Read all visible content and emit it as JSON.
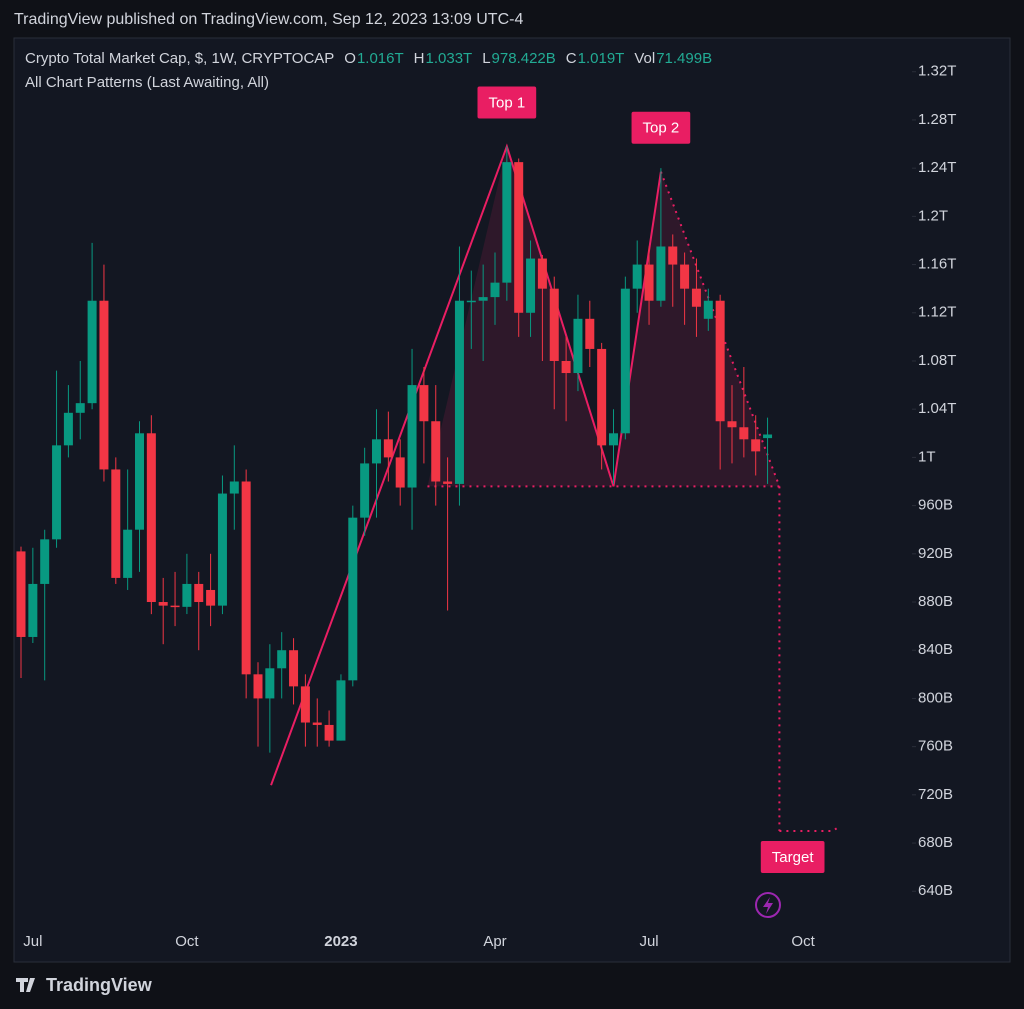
{
  "header": {
    "published": "TradingView published on TradingView.com, Sep 12, 2023 13:09 UTC-4"
  },
  "chart_data": {
    "type": "candlestick",
    "title": "Crypto Total Market Cap, $, 1W, CRYPTOCAP",
    "legend": [
      {
        "key": "O",
        "value": "1.016T"
      },
      {
        "key": "H",
        "value": "1.033T"
      },
      {
        "key": "L",
        "value": "978.422B"
      },
      {
        "key": "C",
        "value": "1.019T"
      },
      {
        "key": "Vol",
        "value": "71.499B"
      }
    ],
    "subtitle": "All Chart Patterns (Last Awaiting, All)",
    "categories": [
      null,
      "Jul",
      null,
      null,
      null,
      null,
      null,
      null,
      null,
      null,
      null,
      null,
      null,
      null,
      "Oct",
      null,
      null,
      null,
      null,
      null,
      null,
      null,
      null,
      null,
      null,
      null,
      null,
      "2023",
      null,
      null,
      null,
      null,
      null,
      null,
      null,
      null,
      null,
      null,
      null,
      null,
      "Apr",
      null,
      null,
      null,
      null,
      null,
      null,
      null,
      null,
      null,
      null,
      null,
      null,
      "Jul",
      null,
      null,
      null,
      null,
      null,
      null,
      null,
      null,
      null,
      null,
      null,
      null,
      "Oct",
      null,
      null,
      null
    ],
    "open": [
      922,
      851,
      895,
      932,
      1010,
      1037,
      1045,
      1130,
      990,
      900,
      940,
      1020,
      880,
      877,
      876,
      895,
      890,
      877,
      970,
      980,
      820,
      800,
      825,
      840,
      810,
      780,
      778,
      765,
      815,
      950,
      995,
      1015,
      1000,
      975,
      1060,
      1030,
      980,
      978,
      1130,
      1130,
      1133,
      1145,
      1245,
      1120,
      1165,
      1140,
      1080,
      1070,
      1115,
      1090,
      1010,
      1020,
      1140,
      1160,
      1130,
      1175,
      1160,
      1140,
      1115,
      1130,
      1030,
      1025,
      1015,
      1016,
      null,
      null,
      null,
      null,
      null,
      null
    ],
    "high": [
      926,
      925,
      940,
      1072,
      1060,
      1080,
      1178,
      1160,
      1000,
      990,
      1030,
      1035,
      900,
      905,
      920,
      905,
      920,
      985,
      1010,
      990,
      830,
      845,
      855,
      850,
      820,
      800,
      790,
      820,
      960,
      1008,
      1040,
      1038,
      1015,
      1090,
      1075,
      1060,
      1000,
      1175,
      1155,
      1160,
      1170,
      1258,
      1248,
      1180,
      1168,
      1150,
      1100,
      1135,
      1130,
      1095,
      1040,
      1150,
      1180,
      1175,
      1240,
      1185,
      1170,
      1165,
      1140,
      1135,
      1060,
      1075,
      1035,
      1033,
      null,
      null,
      null,
      null,
      null,
      null
    ],
    "low": [
      817,
      846,
      815,
      925,
      1000,
      1015,
      1040,
      980,
      895,
      890,
      905,
      870,
      845,
      860,
      870,
      840,
      860,
      870,
      940,
      800,
      760,
      755,
      800,
      795,
      760,
      760,
      760,
      765,
      810,
      935,
      950,
      980,
      960,
      940,
      995,
      960,
      873,
      960,
      1090,
      1080,
      1110,
      1130,
      1100,
      1100,
      1080,
      1040,
      1030,
      1055,
      1075,
      990,
      978,
      1015,
      1120,
      1110,
      1125,
      1125,
      1110,
      1100,
      1105,
      990,
      995,
      1000,
      985,
      978,
      null,
      null,
      null,
      null,
      null,
      null
    ],
    "close": [
      851,
      895,
      932,
      1010,
      1037,
      1045,
      1130,
      990,
      900,
      940,
      1020,
      880,
      877,
      876,
      895,
      880,
      877,
      970,
      980,
      820,
      800,
      825,
      840,
      810,
      780,
      778,
      765,
      815,
      950,
      995,
      1015,
      1000,
      975,
      1060,
      1030,
      980,
      978,
      1130,
      1130,
      1133,
      1145,
      1245,
      1120,
      1165,
      1140,
      1080,
      1070,
      1115,
      1090,
      1010,
      1020,
      1140,
      1160,
      1130,
      1175,
      1160,
      1140,
      1125,
      1130,
      1030,
      1025,
      1015,
      1005,
      1019,
      null,
      null,
      null,
      null,
      null,
      null
    ],
    "up_color": "#089981",
    "down_color": "#f23645",
    "ylim": [
      612,
      1348
    ],
    "yticks": [
      {
        "value": 1320,
        "label": "1.32T"
      },
      {
        "value": 1280,
        "label": "1.28T"
      },
      {
        "value": 1240,
        "label": "1.24T"
      },
      {
        "value": 1200,
        "label": "1.2T"
      },
      {
        "value": 1160,
        "label": "1.16T"
      },
      {
        "value": 1120,
        "label": "1.12T"
      },
      {
        "value": 1080,
        "label": "1.08T"
      },
      {
        "value": 1040,
        "label": "1.04T"
      },
      {
        "value": 1000,
        "label": "1T"
      },
      {
        "value": 960,
        "label": "960B"
      },
      {
        "value": 920,
        "label": "920B"
      },
      {
        "value": 880,
        "label": "880B"
      },
      {
        "value": 840,
        "label": "840B"
      },
      {
        "value": 800,
        "label": "800B"
      },
      {
        "value": 760,
        "label": "760B"
      },
      {
        "value": 720,
        "label": "720B"
      },
      {
        "value": 680,
        "label": "680B"
      },
      {
        "value": 640,
        "label": "640B"
      }
    ],
    "pattern": {
      "points": [
        728,
        1258,
        976,
        1237
      ],
      "neckline": 976,
      "target": 690,
      "labels": [
        "Top 1",
        "Top 2",
        "Target"
      ],
      "color": "#e91e63"
    }
  },
  "footer": {
    "brand": "TradingView"
  }
}
